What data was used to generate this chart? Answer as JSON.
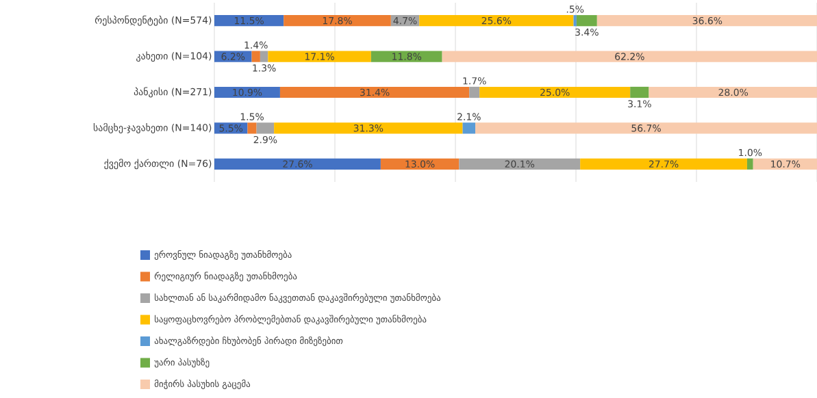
{
  "chart_data": {
    "type": "bar",
    "orientation": "horizontal",
    "stacked": true,
    "legend": "bottom",
    "grid": "x",
    "tick_labels": "y",
    "categories": [
      "რესპონდენტები (N=574)",
      "კახეთი (N=104)",
      "პანკისი (N=271)",
      "სამცხე-ჯავახეთი (N=140)",
      "ქვემო ქართლი (N=76)"
    ],
    "xlim": [
      0,
      100
    ],
    "xticks": [
      {
        "value": 0,
        "label": null
      },
      {
        "value": 20,
        "label": null
      },
      {
        "value": 40,
        "label": null
      },
      {
        "value": 60,
        "label": null
      },
      {
        "value": 80,
        "label": null
      },
      {
        "value": 100,
        "label": null
      }
    ],
    "series": [
      {
        "name": "ეროვნულ ნიადაგზე უთანხმოება",
        "color": "#4472c4",
        "values": [
          11.5,
          6.2,
          10.9,
          5.5,
          27.6
        ],
        "value_labels": [
          "11.5%",
          "6.2%",
          "10.9%",
          "5.5%",
          "27.6%"
        ]
      },
      {
        "name": "რელიგიურ ნიადაგზე უთანხმოება",
        "color": "#ed7d31",
        "values": [
          17.8,
          1.4,
          31.4,
          1.5,
          13.0
        ],
        "value_labels": [
          "17.8%",
          "1.4%",
          "31.4%",
          "1.5%",
          "13.0%"
        ]
      },
      {
        "name": "სახლთან ან საკარმიდამო ნაკვეთთან დაკავშირებული უთანხმოება",
        "color": "#a5a5a5",
        "values": [
          4.7,
          1.3,
          1.7,
          2.9,
          20.1
        ],
        "value_labels": [
          "4.7%",
          "1.3%",
          "1.7%",
          "2.9%",
          "20.1%"
        ]
      },
      {
        "name": "საყოფაცხოვრებო პრობლემებთან დაკავშირებული უთანხმოება",
        "color": "#ffc000",
        "values": [
          25.6,
          17.1,
          25.0,
          31.3,
          27.7
        ],
        "value_labels": [
          "25.6%",
          "17.1%",
          "25.0%",
          "31.3%",
          "27.7%"
        ]
      },
      {
        "name": "ახალგაზრდები ჩხუბობენ პირადი მიზეზებით",
        "color": "#5b9bd5",
        "values": [
          0.5,
          null,
          null,
          2.1,
          null
        ],
        "value_labels": [
          ".5%",
          null,
          null,
          "2.1%",
          null
        ]
      },
      {
        "name": "უარი პასუხზე",
        "color": "#70ad47",
        "values": [
          3.4,
          11.8,
          3.1,
          null,
          1.0
        ],
        "value_labels": [
          "3.4%",
          "11.8%",
          "3.1%",
          null,
          "1.0%"
        ]
      },
      {
        "name": "მიჭირს პასუხის გაცემა",
        "color": "#f8cbad",
        "values": [
          36.6,
          62.2,
          28.0,
          56.7,
          10.7
        ],
        "value_labels": [
          "36.6%",
          "62.2%",
          "28.0%",
          "56.7%",
          "10.7%"
        ]
      }
    ]
  }
}
